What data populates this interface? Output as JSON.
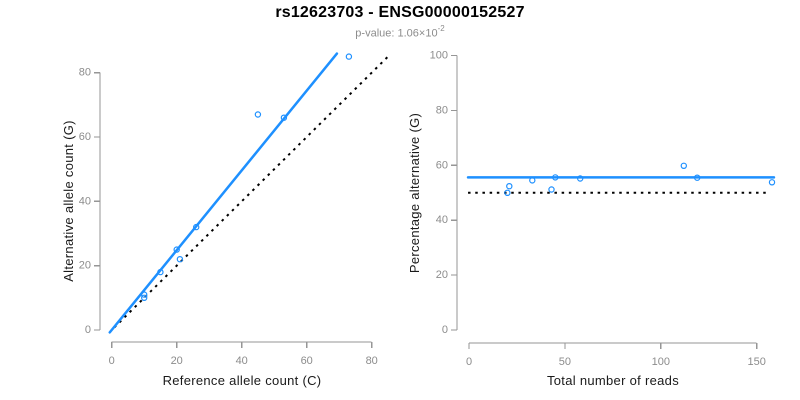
{
  "header": {
    "title": "rs12623703 - ENSG00000152527",
    "subtitle_text": "p-value: 1.06×10",
    "subtitle_superscript": "-2"
  },
  "colors": {
    "point_and_fit_blue": "#1E90FF",
    "reference_dotted_black": "#000000",
    "axis_gray": "#969696",
    "tick_label_gray": "#8C8C8C",
    "axis_title_black": "#1A1A1A",
    "background": "#FFFFFF"
  },
  "chart_data": [
    {
      "id": "allele-counts-scatter",
      "type": "scatter",
      "title": "",
      "xlabel": "Reference allele count (C)",
      "ylabel": "Alternative allele count (G)",
      "xticks": [
        0,
        20,
        40,
        60,
        80
      ],
      "yticks": [
        0,
        20,
        40,
        60,
        80
      ],
      "xlim": [
        -3.5,
        88.5
      ],
      "ylim": [
        -3.5,
        88.5
      ],
      "grid": false,
      "legend": false,
      "points": [
        [
          10,
          10
        ],
        [
          10,
          11
        ],
        [
          15,
          18
        ],
        [
          20,
          25
        ],
        [
          21,
          22
        ],
        [
          26,
          32
        ],
        [
          45,
          67
        ],
        [
          53,
          66
        ],
        [
          73,
          85
        ]
      ],
      "fit_line": {
        "kind": "linear",
        "slope": 1.24,
        "intercept": 0,
        "style": "solid",
        "color": "#1E90FF"
      },
      "reference_line": {
        "kind": "identity",
        "slope": 1,
        "intercept": 0,
        "style": "dotted",
        "color": "#000000"
      }
    },
    {
      "id": "percentage-vs-total-reads-scatter",
      "type": "scatter",
      "title": "",
      "xlabel": "Total number of reads",
      "ylabel": "Percentage alternative (G)",
      "xticks": [
        0,
        50,
        100,
        150
      ],
      "yticks": [
        0,
        20,
        40,
        60,
        80,
        100
      ],
      "xlim": [
        -6.5,
        164.5
      ],
      "ylim": [
        0,
        100
      ],
      "grid": false,
      "legend": false,
      "points": [
        [
          20,
          50.0
        ],
        [
          21,
          52.4
        ],
        [
          33,
          54.5
        ],
        [
          45,
          55.6
        ],
        [
          43,
          51.2
        ],
        [
          58,
          55.2
        ],
        [
          112,
          59.8
        ],
        [
          119,
          55.5
        ],
        [
          158,
          53.8
        ]
      ],
      "fit_line": {
        "kind": "horizontal",
        "y": 55.6,
        "style": "solid",
        "color": "#1E90FF"
      },
      "reference_line": {
        "kind": "horizontal",
        "y": 50,
        "style": "dotted",
        "color": "#000000"
      }
    }
  ]
}
